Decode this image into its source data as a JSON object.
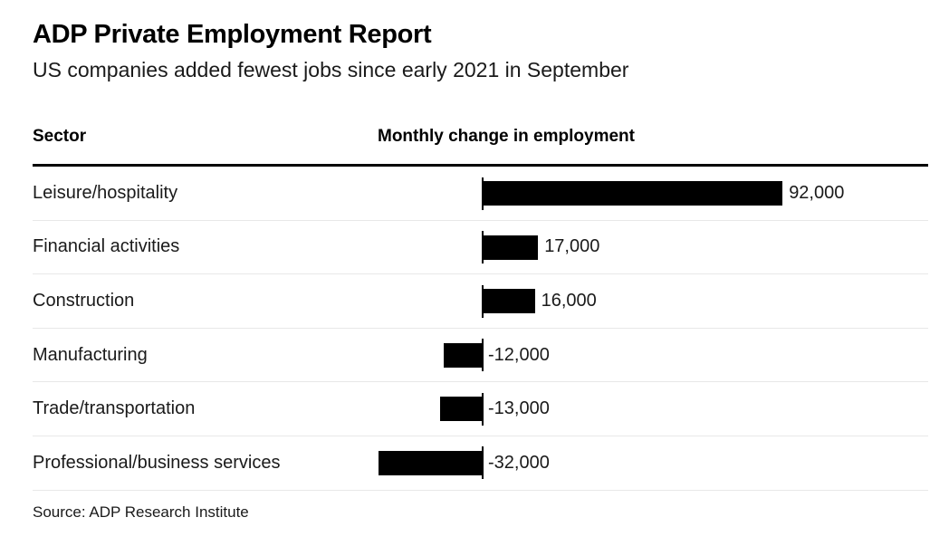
{
  "header": {
    "title": "ADP Private Employment Report",
    "subtitle": "US companies added fewest jobs since early 2021 in September"
  },
  "table": {
    "sector_header": "Sector",
    "value_header": "Monthly change in employment"
  },
  "chart_data": {
    "type": "bar",
    "orientation": "horizontal",
    "title": "ADP Private Employment Report",
    "subtitle": "US companies added fewest jobs since early 2021 in September",
    "xlabel": "Monthly change in employment",
    "ylabel": "Sector",
    "categories": [
      "Leisure/hospitality",
      "Financial activities",
      "Construction",
      "Manufacturing",
      "Trade/transportation",
      "Professional/business services"
    ],
    "values": [
      92000,
      17000,
      16000,
      -12000,
      -13000,
      -32000
    ],
    "value_labels": [
      "92,000",
      "17,000",
      "16,000",
      "-12,000",
      "-13,000",
      "-32,000"
    ],
    "xlim": [
      -40000,
      100000
    ],
    "zero_baseline": true,
    "grid": false,
    "legend": false
  },
  "footer": {
    "source": "Source: ADP Research Institute"
  },
  "colors": {
    "bar": "#000000",
    "rule": "#000000",
    "separator": "#e8e8e8",
    "background": "#ffffff",
    "title_text": "#000000",
    "body_text": "#1a1a1a"
  }
}
